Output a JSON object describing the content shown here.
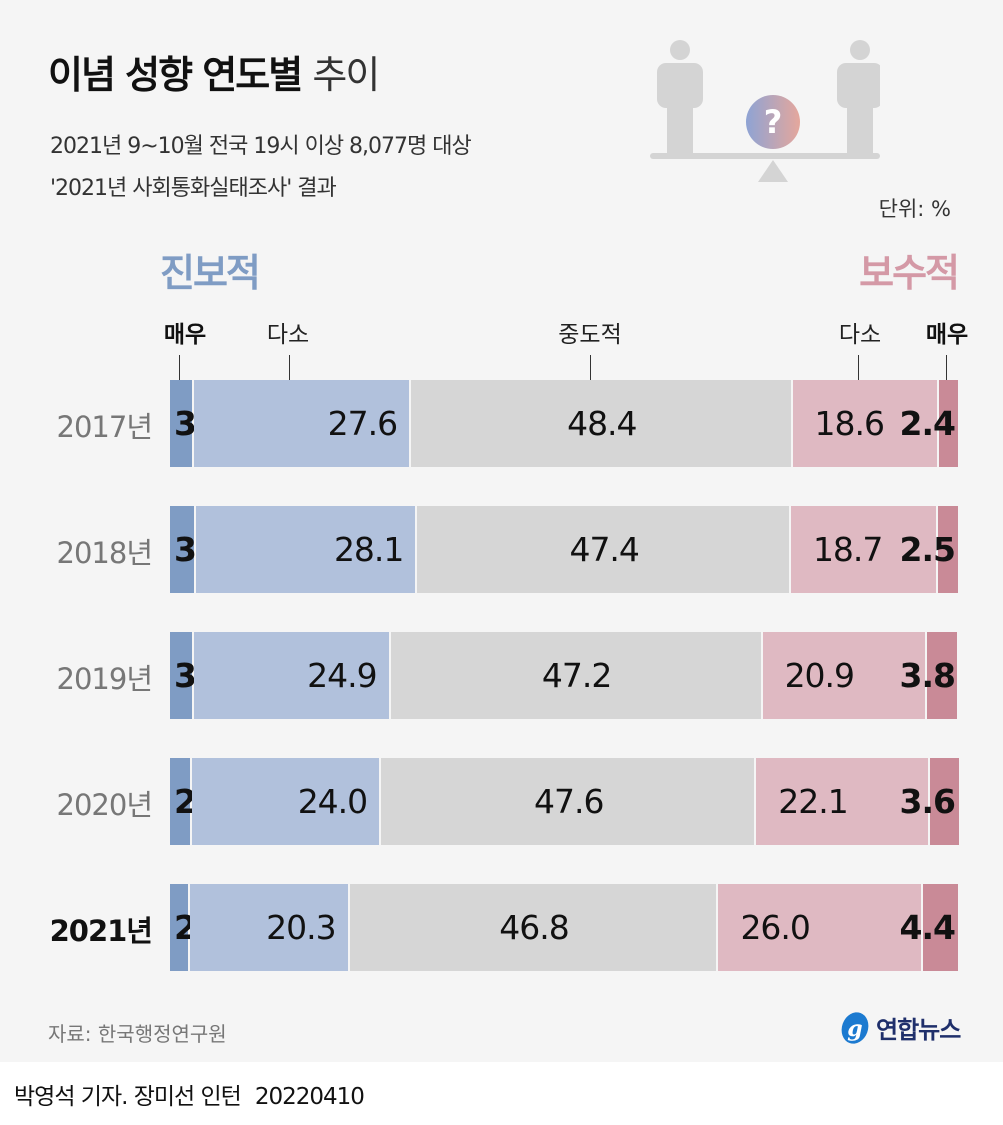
{
  "header": {
    "title_bold": "이념 성향 연도별",
    "title_light": "추이",
    "subtitle_line1": "2021년 9~10월 전국 19시 이상 8,077명 대상",
    "subtitle_line2": "'2021년 사회통화실태조사' 결과",
    "unit": "단위: %",
    "icon": "balance-scale-question-icon"
  },
  "chart_data": {
    "type": "bar",
    "orientation": "horizontal",
    "stacked": true,
    "group_labels": {
      "left": "진보적",
      "right": "보수적"
    },
    "categories": [
      "2017년",
      "2018년",
      "2019년",
      "2020년",
      "2021년"
    ],
    "series": [
      {
        "name": "매우",
        "group": "진보적",
        "values": [
          3.0,
          3.3,
          3.1,
          2.8,
          2.5
        ]
      },
      {
        "name": "다소",
        "group": "진보적",
        "values": [
          27.6,
          28.1,
          24.9,
          24.0,
          20.3
        ]
      },
      {
        "name": "중도적",
        "values": [
          48.4,
          47.4,
          47.2,
          47.6,
          46.8
        ]
      },
      {
        "name": "다소",
        "group": "보수적",
        "values": [
          18.6,
          18.7,
          20.9,
          22.1,
          26.0
        ]
      },
      {
        "name": "매우",
        "group": "보수적",
        "values": [
          2.4,
          2.5,
          3.8,
          3.6,
          4.4
        ]
      }
    ],
    "colors": [
      "#7f9cc4",
      "#b1c1dc",
      "#d6d6d6",
      "#dfb9c2",
      "#c98a97"
    ],
    "group_colors": {
      "left": "#7f9cc4",
      "right": "#d499a6"
    },
    "xlim": [
      0,
      100
    ],
    "highlight_category": "2021년"
  },
  "footer": {
    "source": "자료: 한국행정연구원",
    "logo": "연합뉴스",
    "credit": "박영석 기자. 장미선 인턴",
    "date": "20220410"
  }
}
